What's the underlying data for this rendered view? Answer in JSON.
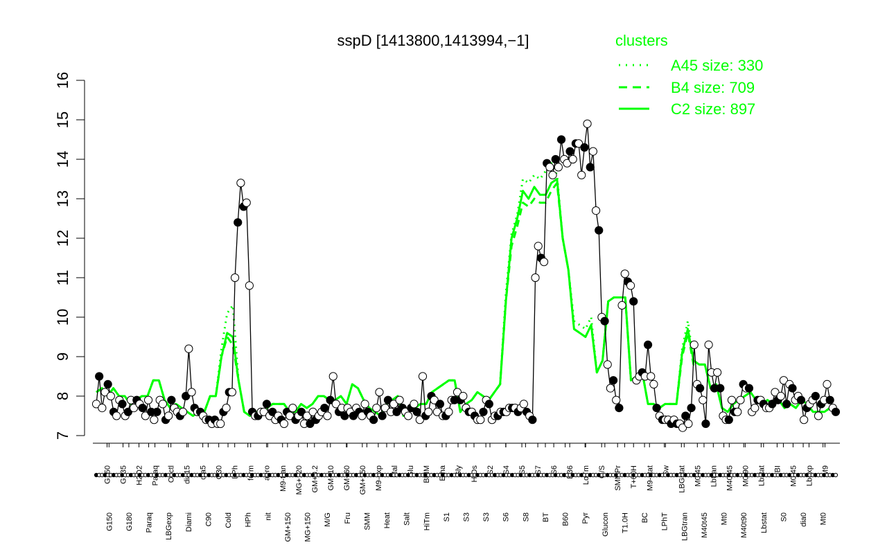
{
  "chart_data": {
    "type": "line",
    "title": "sspD [1413800,1413994,−1]",
    "ylim": [
      7,
      16
    ],
    "yticks": [
      "7",
      "8",
      "9",
      "10",
      "11",
      "12",
      "13",
      "14",
      "15",
      "16"
    ],
    "legend": {
      "title": "clusters",
      "placement": "top-right",
      "color": "#00ff00",
      "entries": [
        {
          "label": "A45 size: 330",
          "style": "dotted"
        },
        {
          "label": "B4 size: 709",
          "style": "dashed"
        },
        {
          "label": "C2 size: 897",
          "style": "solid"
        }
      ]
    },
    "xticks_top": [
      "G150",
      "G135",
      "H2O2",
      "Paraq",
      "Oxctl",
      "dia15",
      "dia5",
      "C30",
      "LPh",
      "ferm",
      "aero",
      "M9-tran",
      "MG+120",
      "GM+0.2",
      "GM+10",
      "GM+60",
      "GM+150",
      "M9-exp",
      "Mal",
      "Glu",
      "BMM",
      "Etha",
      "Gly",
      "HiOs",
      "S2",
      "S4",
      "S5",
      "S7",
      "S6",
      "B36",
      "LoTm",
      "G/S",
      "SMMPr",
      "T+60H",
      "M9-stat",
      "Sw",
      "LBGstat",
      "M0t45",
      "Lbtran",
      "M40t45",
      "M0t90",
      "Lbstat",
      "BI",
      "M0t45",
      "Lbexp",
      "M9"
    ],
    "xticks_bottom": [
      "G150",
      "G180",
      "Paraq",
      "LBGexp",
      "Diami",
      "C90",
      "Cold",
      "HPh",
      "nit",
      "GM+150",
      "MG+150",
      "M/G",
      "Fru",
      "SMM",
      "Heat",
      "Salt",
      "HiTm",
      "S1",
      "S3",
      "S3",
      "S6",
      "S8",
      "BT",
      "B60",
      "Pyr",
      "Glucon",
      "T1.0H",
      "BC",
      "LPhT",
      "LBGtran",
      "M40t45",
      "Mt0",
      "M40t90",
      "Lbstat",
      "S0",
      "dia0",
      "Mt0"
    ],
    "series": [
      {
        "style": "black-line-circles",
        "values": [
          7.8,
          8.5,
          7.7,
          8.1,
          8.3,
          8.0,
          7.6,
          7.5,
          7.9,
          7.8,
          7.5,
          7.6,
          7.9,
          7.7,
          7.9,
          7.8,
          7.7,
          7.5,
          7.9,
          7.6,
          7.4,
          7.6,
          7.9,
          7.8,
          7.4,
          7.5,
          7.9,
          7.7,
          7.6,
          7.5,
          7.6,
          8.0,
          9.2,
          8.1,
          7.7,
          7.6,
          7.6,
          7.5,
          7.4,
          7.4,
          7.3,
          7.4,
          7.3,
          7.3,
          7.6,
          7.7,
          8.1,
          8.1,
          11.0,
          12.4,
          13.4,
          12.8,
          12.9,
          10.8,
          7.6,
          7.5,
          7.5,
          7.6,
          7.6,
          7.8,
          7.5,
          7.6,
          7.4,
          7.5,
          7.4,
          7.3,
          7.6,
          7.5,
          7.7,
          7.4,
          7.5,
          7.6,
          7.3,
          7.5,
          7.3,
          7.6,
          7.4,
          7.5,
          7.6,
          7.7,
          7.5,
          7.9,
          8.5,
          7.8,
          7.6,
          7.7,
          7.5,
          7.7,
          7.6,
          7.5,
          7.7,
          7.6,
          7.5,
          7.8,
          7.6,
          7.5,
          7.4,
          7.7,
          8.1,
          7.5,
          7.7,
          7.9,
          7.6,
          7.8,
          7.6,
          7.9,
          7.7,
          7.6,
          7.5,
          7.7,
          7.8,
          7.6,
          7.4,
          8.5,
          7.5,
          7.6,
          8.0,
          7.9,
          7.6,
          7.8,
          7.5,
          7.5,
          7.6,
          7.9,
          7.9,
          8.1,
          7.9,
          8.0,
          7.7,
          7.6,
          7.6,
          7.5,
          7.4,
          7.4,
          7.6,
          7.9,
          7.8,
          7.4,
          7.5,
          7.5,
          7.6,
          7.6,
          7.6,
          7.7,
          7.7,
          7.7,
          7.6,
          7.7,
          7.8,
          7.6,
          7.5,
          7.4,
          11.0,
          11.8,
          11.5,
          11.4,
          13.9,
          13.8,
          13.6,
          14.0,
          13.8,
          14.5,
          14.0,
          13.9,
          14.2,
          14.0,
          14.4,
          14.4,
          13.6,
          14.3,
          14.9,
          13.8,
          14.2,
          12.7,
          12.2,
          10.0,
          9.9,
          8.8,
          8.2,
          8.4,
          7.9,
          7.7,
          10.3,
          11.1,
          10.9,
          10.8,
          10.4,
          8.4,
          8.5,
          8.6,
          8.5,
          9.3,
          8.5,
          8.3,
          7.7,
          7.5,
          7.4,
          7.4,
          7.4,
          7.3,
          7.4,
          7.3,
          7.3,
          7.2,
          7.5,
          7.3,
          7.7,
          9.3,
          8.3,
          8.2,
          7.9,
          7.3,
          9.3,
          8.6,
          8.2,
          8.6,
          8.2,
          7.5,
          7.4,
          7.4,
          7.9,
          7.6,
          7.6,
          7.9,
          8.3,
          8.2,
          8.2,
          7.6,
          7.7,
          7.9,
          7.9,
          7.8,
          7.7,
          7.7,
          7.8,
          8.1,
          7.9,
          8.0,
          8.4,
          7.8,
          8.3,
          8.2,
          7.9,
          8.0,
          7.9,
          7.4,
          7.7,
          7.8,
          7.9,
          8.0,
          7.5,
          7.8,
          7.9,
          8.3,
          7.9,
          7.7,
          7.6
        ]
      },
      {
        "name": "C2 size: 897",
        "style": "solid",
        "values": [
          8.1,
          8.2,
          8.0,
          8.2,
          8.0,
          8.0,
          7.8,
          7.9,
          8.0,
          8.0,
          8.4,
          8.4,
          7.9,
          7.7,
          7.8,
          7.7,
          7.6,
          7.5,
          7.6,
          7.6,
          8.0,
          8.0,
          9.0,
          9.6,
          9.5,
          8.4,
          7.6,
          7.5,
          7.6,
          7.6,
          7.7,
          7.8,
          7.8,
          7.8,
          7.6,
          7.6,
          7.8,
          7.7,
          7.8,
          8.0,
          8.0,
          7.9,
          7.9,
          8.0,
          7.8,
          8.3,
          8.2,
          7.9,
          7.7,
          7.6,
          7.5,
          7.8,
          7.9,
          8.0,
          7.5,
          7.7,
          7.7,
          7.8,
          7.8,
          8.1,
          8.2,
          8.3,
          8.4,
          8.4,
          7.6,
          7.8,
          7.9,
          8.1,
          8.0,
          7.9,
          8.1,
          8.3,
          10.4,
          12.0,
          12.5,
          13.2,
          13.0,
          13.3,
          13.1,
          13.1,
          13.4,
          13.5,
          12.0,
          11.2,
          9.7,
          9.6,
          9.5,
          9.8,
          8.6,
          8.9,
          10.4,
          10.5,
          10.5,
          10.5,
          8.4,
          8.5,
          8.6,
          7.8,
          7.8,
          7.7,
          7.8,
          7.8,
          7.8,
          9.1,
          9.7,
          8.9,
          8.8,
          8.8,
          8.2,
          8.3,
          7.7,
          7.6,
          7.8,
          7.9,
          8.0,
          8.1,
          7.9,
          7.8,
          7.9,
          7.8,
          7.9,
          7.7,
          7.8,
          7.7,
          7.9,
          7.8,
          7.6,
          7.6,
          7.6,
          7.7,
          7.7
        ]
      },
      {
        "name": "B4 size: 709",
        "style": "dashed",
        "values": [
          8.1,
          8.2,
          8.0,
          8.2,
          8.0,
          8.0,
          7.8,
          7.9,
          8.0,
          8.0,
          8.4,
          8.4,
          7.9,
          7.7,
          7.8,
          7.7,
          7.6,
          7.5,
          7.6,
          7.6,
          8.0,
          8.0,
          9.0,
          9.5,
          9.3,
          8.4,
          7.6,
          7.5,
          7.6,
          7.6,
          7.7,
          7.8,
          7.8,
          7.8,
          7.6,
          7.6,
          7.8,
          7.7,
          7.8,
          8.0,
          8.0,
          7.9,
          7.9,
          8.0,
          7.8,
          8.3,
          8.2,
          7.9,
          7.7,
          7.6,
          7.5,
          7.8,
          7.9,
          8.0,
          7.5,
          7.7,
          7.7,
          7.8,
          7.8,
          8.1,
          8.2,
          8.3,
          8.4,
          8.4,
          7.6,
          7.8,
          7.9,
          8.1,
          8.0,
          7.9,
          8.1,
          8.3,
          10.4,
          11.8,
          12.3,
          12.9,
          12.8,
          13.0,
          12.9,
          12.9,
          13.2,
          13.4,
          12.0,
          11.2,
          9.7,
          9.6,
          9.5,
          9.8,
          8.6,
          8.9,
          10.4,
          10.5,
          10.5,
          10.5,
          8.4,
          8.5,
          8.6,
          7.8,
          7.8,
          7.7,
          7.8,
          7.8,
          7.8,
          9.0,
          9.6,
          8.8,
          8.8,
          8.8,
          8.2,
          8.3,
          7.7,
          7.6,
          7.8,
          7.9,
          8.0,
          8.1,
          7.9,
          7.8,
          7.9,
          7.8,
          7.9,
          7.7,
          7.8,
          7.7,
          7.9,
          7.8,
          7.6,
          7.6,
          7.6,
          7.7,
          7.7
        ]
      },
      {
        "name": "A45 size: 330",
        "style": "dotted",
        "values": [
          8.1,
          8.2,
          8.0,
          8.2,
          8.0,
          8.0,
          7.8,
          7.9,
          8.0,
          8.0,
          8.4,
          8.4,
          7.9,
          7.7,
          7.8,
          7.7,
          7.6,
          7.5,
          7.6,
          7.6,
          8.0,
          8.0,
          9.2,
          10.1,
          10.3,
          8.4,
          7.6,
          7.5,
          7.6,
          7.6,
          7.7,
          7.8,
          7.8,
          7.8,
          7.6,
          7.6,
          7.8,
          7.7,
          7.8,
          8.0,
          8.0,
          7.9,
          7.9,
          8.0,
          7.8,
          8.3,
          8.2,
          7.9,
          7.7,
          7.6,
          7.5,
          7.8,
          7.9,
          8.0,
          7.5,
          7.7,
          7.7,
          7.8,
          7.8,
          8.1,
          8.2,
          8.3,
          8.4,
          8.4,
          7.6,
          7.8,
          7.9,
          8.1,
          8.0,
          7.9,
          8.1,
          8.3,
          10.6,
          12.1,
          12.6,
          13.5,
          13.4,
          13.6,
          13.5,
          13.7,
          13.9,
          13.6,
          12.0,
          11.2,
          9.9,
          9.8,
          9.7,
          10.0,
          8.6,
          8.9,
          10.4,
          10.5,
          10.5,
          10.5,
          8.4,
          8.5,
          8.6,
          7.8,
          7.8,
          7.7,
          7.8,
          7.8,
          7.8,
          9.2,
          9.9,
          8.9,
          8.8,
          8.8,
          8.2,
          8.3,
          7.7,
          7.6,
          7.8,
          7.9,
          8.0,
          8.1,
          7.9,
          7.8,
          7.9,
          7.8,
          7.9,
          7.7,
          7.8,
          7.7,
          7.9,
          7.8,
          7.6,
          7.6,
          7.6,
          7.7,
          7.7
        ]
      }
    ]
  }
}
